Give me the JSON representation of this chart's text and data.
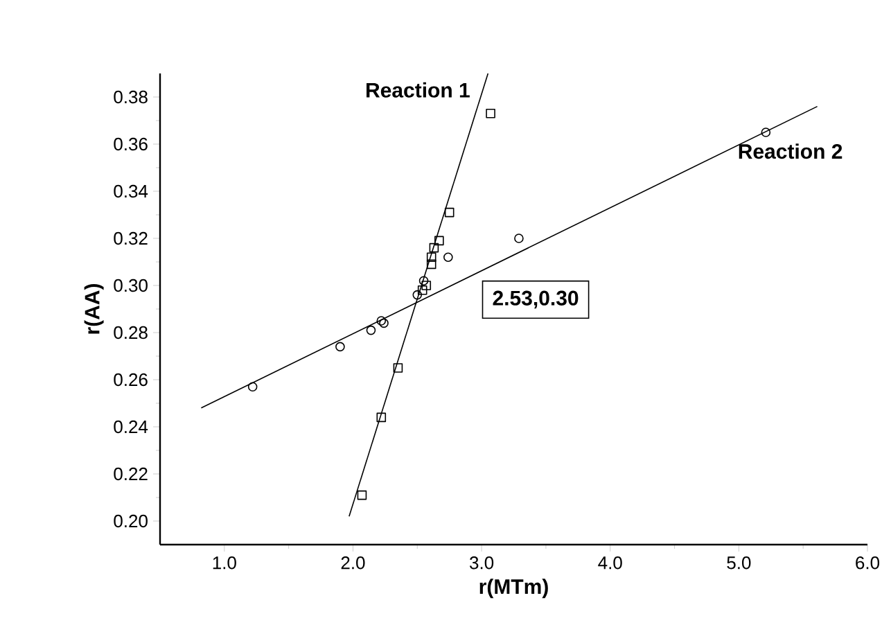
{
  "chart_data": {
    "type": "scatter",
    "xlabel": "r(MTm)",
    "ylabel": "r(AA)",
    "xlim": [
      0.5,
      6.0
    ],
    "ylim": [
      0.19,
      0.39
    ],
    "xticks": [
      {
        "value": 1,
        "label": "1.0"
      },
      {
        "value": 2,
        "label": "2.0"
      },
      {
        "value": 3,
        "label": "3.0"
      },
      {
        "value": 4,
        "label": "4.0"
      },
      {
        "value": 5,
        "label": "5.0"
      },
      {
        "value": 6,
        "label": "6.0"
      }
    ],
    "yticks": [
      {
        "value": 0.2,
        "label": "0.20"
      },
      {
        "value": 0.22,
        "label": "0.22"
      },
      {
        "value": 0.24,
        "label": "0.24"
      },
      {
        "value": 0.26,
        "label": "0.26"
      },
      {
        "value": 0.28,
        "label": "0.28"
      },
      {
        "value": 0.3,
        "label": "0.30"
      },
      {
        "value": 0.32,
        "label": "0.32"
      },
      {
        "value": 0.34,
        "label": "0.34"
      },
      {
        "value": 0.36,
        "label": "0.36"
      },
      {
        "value": 0.38,
        "label": "0.38"
      }
    ],
    "series": [
      {
        "name": "Reaction 1",
        "marker": "square",
        "color": "#000000",
        "x": [
          2.07,
          2.22,
          2.35,
          2.54,
          2.57,
          2.61,
          2.61,
          2.63,
          2.67,
          2.75,
          3.07
        ],
        "values": [
          0.211,
          0.244,
          0.265,
          0.298,
          0.3,
          0.309,
          0.312,
          0.316,
          0.319,
          0.331,
          0.373
        ]
      },
      {
        "name": "Reaction 2",
        "marker": "circle",
        "color": "#000000",
        "x": [
          1.22,
          1.9,
          2.14,
          2.22,
          2.24,
          2.5,
          2.55,
          2.74,
          3.29,
          5.21
        ],
        "values": [
          0.257,
          0.274,
          0.281,
          0.285,
          0.284,
          0.296,
          0.302,
          0.312,
          0.32,
          0.365
        ]
      },
      {
        "type": "line",
        "marker": "none",
        "color": "#000000",
        "x": [
          1.97,
          3.05
        ],
        "values": [
          0.202,
          0.39
        ]
      },
      {
        "type": "line",
        "marker": "none",
        "color": "#000000",
        "x": [
          0.82,
          5.61
        ],
        "values": [
          0.248,
          0.376
        ]
      }
    ],
    "annotations": [
      "2.53,0.30"
    ]
  }
}
